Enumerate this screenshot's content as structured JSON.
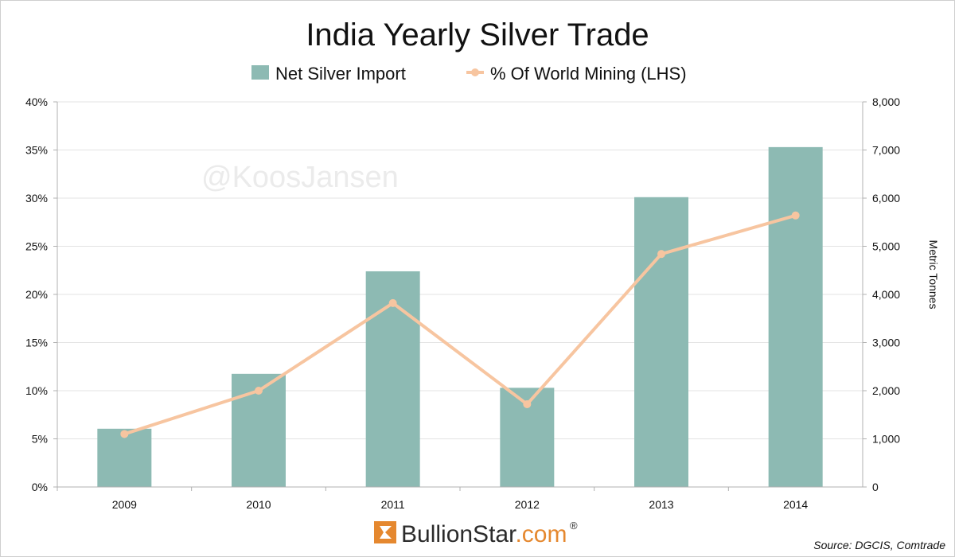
{
  "chart_data": {
    "type": "bar",
    "title": "India Yearly Silver Trade",
    "categories": [
      "2009",
      "2010",
      "2011",
      "2012",
      "2013",
      "2014"
    ],
    "series": [
      {
        "name": "Net Silver Import",
        "kind": "bar",
        "axis": "right",
        "color": "#8dbab3",
        "values": [
          1210,
          2350,
          4480,
          2060,
          6020,
          7060
        ]
      },
      {
        "name": "% Of World Mining (LHS)",
        "kind": "line",
        "axis": "left",
        "color": "#f7c5a0",
        "values": [
          5.5,
          10.0,
          19.1,
          8.6,
          24.2,
          28.2
        ]
      }
    ],
    "y_left": {
      "min": 0,
      "max": 40,
      "ticks": [
        "0%",
        "5%",
        "10%",
        "15%",
        "20%",
        "25%",
        "30%",
        "35%",
        "40%"
      ]
    },
    "y_right": {
      "min": 0,
      "max": 8000,
      "ticks": [
        "0",
        "1,000",
        "2,000",
        "3,000",
        "4,000",
        "5,000",
        "6,000",
        "7,000",
        "8,000"
      ],
      "label": "Metric Tonnes"
    },
    "legend_position": "top",
    "grid": true
  },
  "watermark": "@KoosJansen",
  "logo": {
    "name": "BullionStar",
    "suffix": ".com",
    "registered": "®"
  },
  "source": "Source: DGCIS, Comtrade",
  "colors": {
    "logo_orange": "#e5882f",
    "grid": "#e3e3e3",
    "axis": "#b0b0b0"
  }
}
